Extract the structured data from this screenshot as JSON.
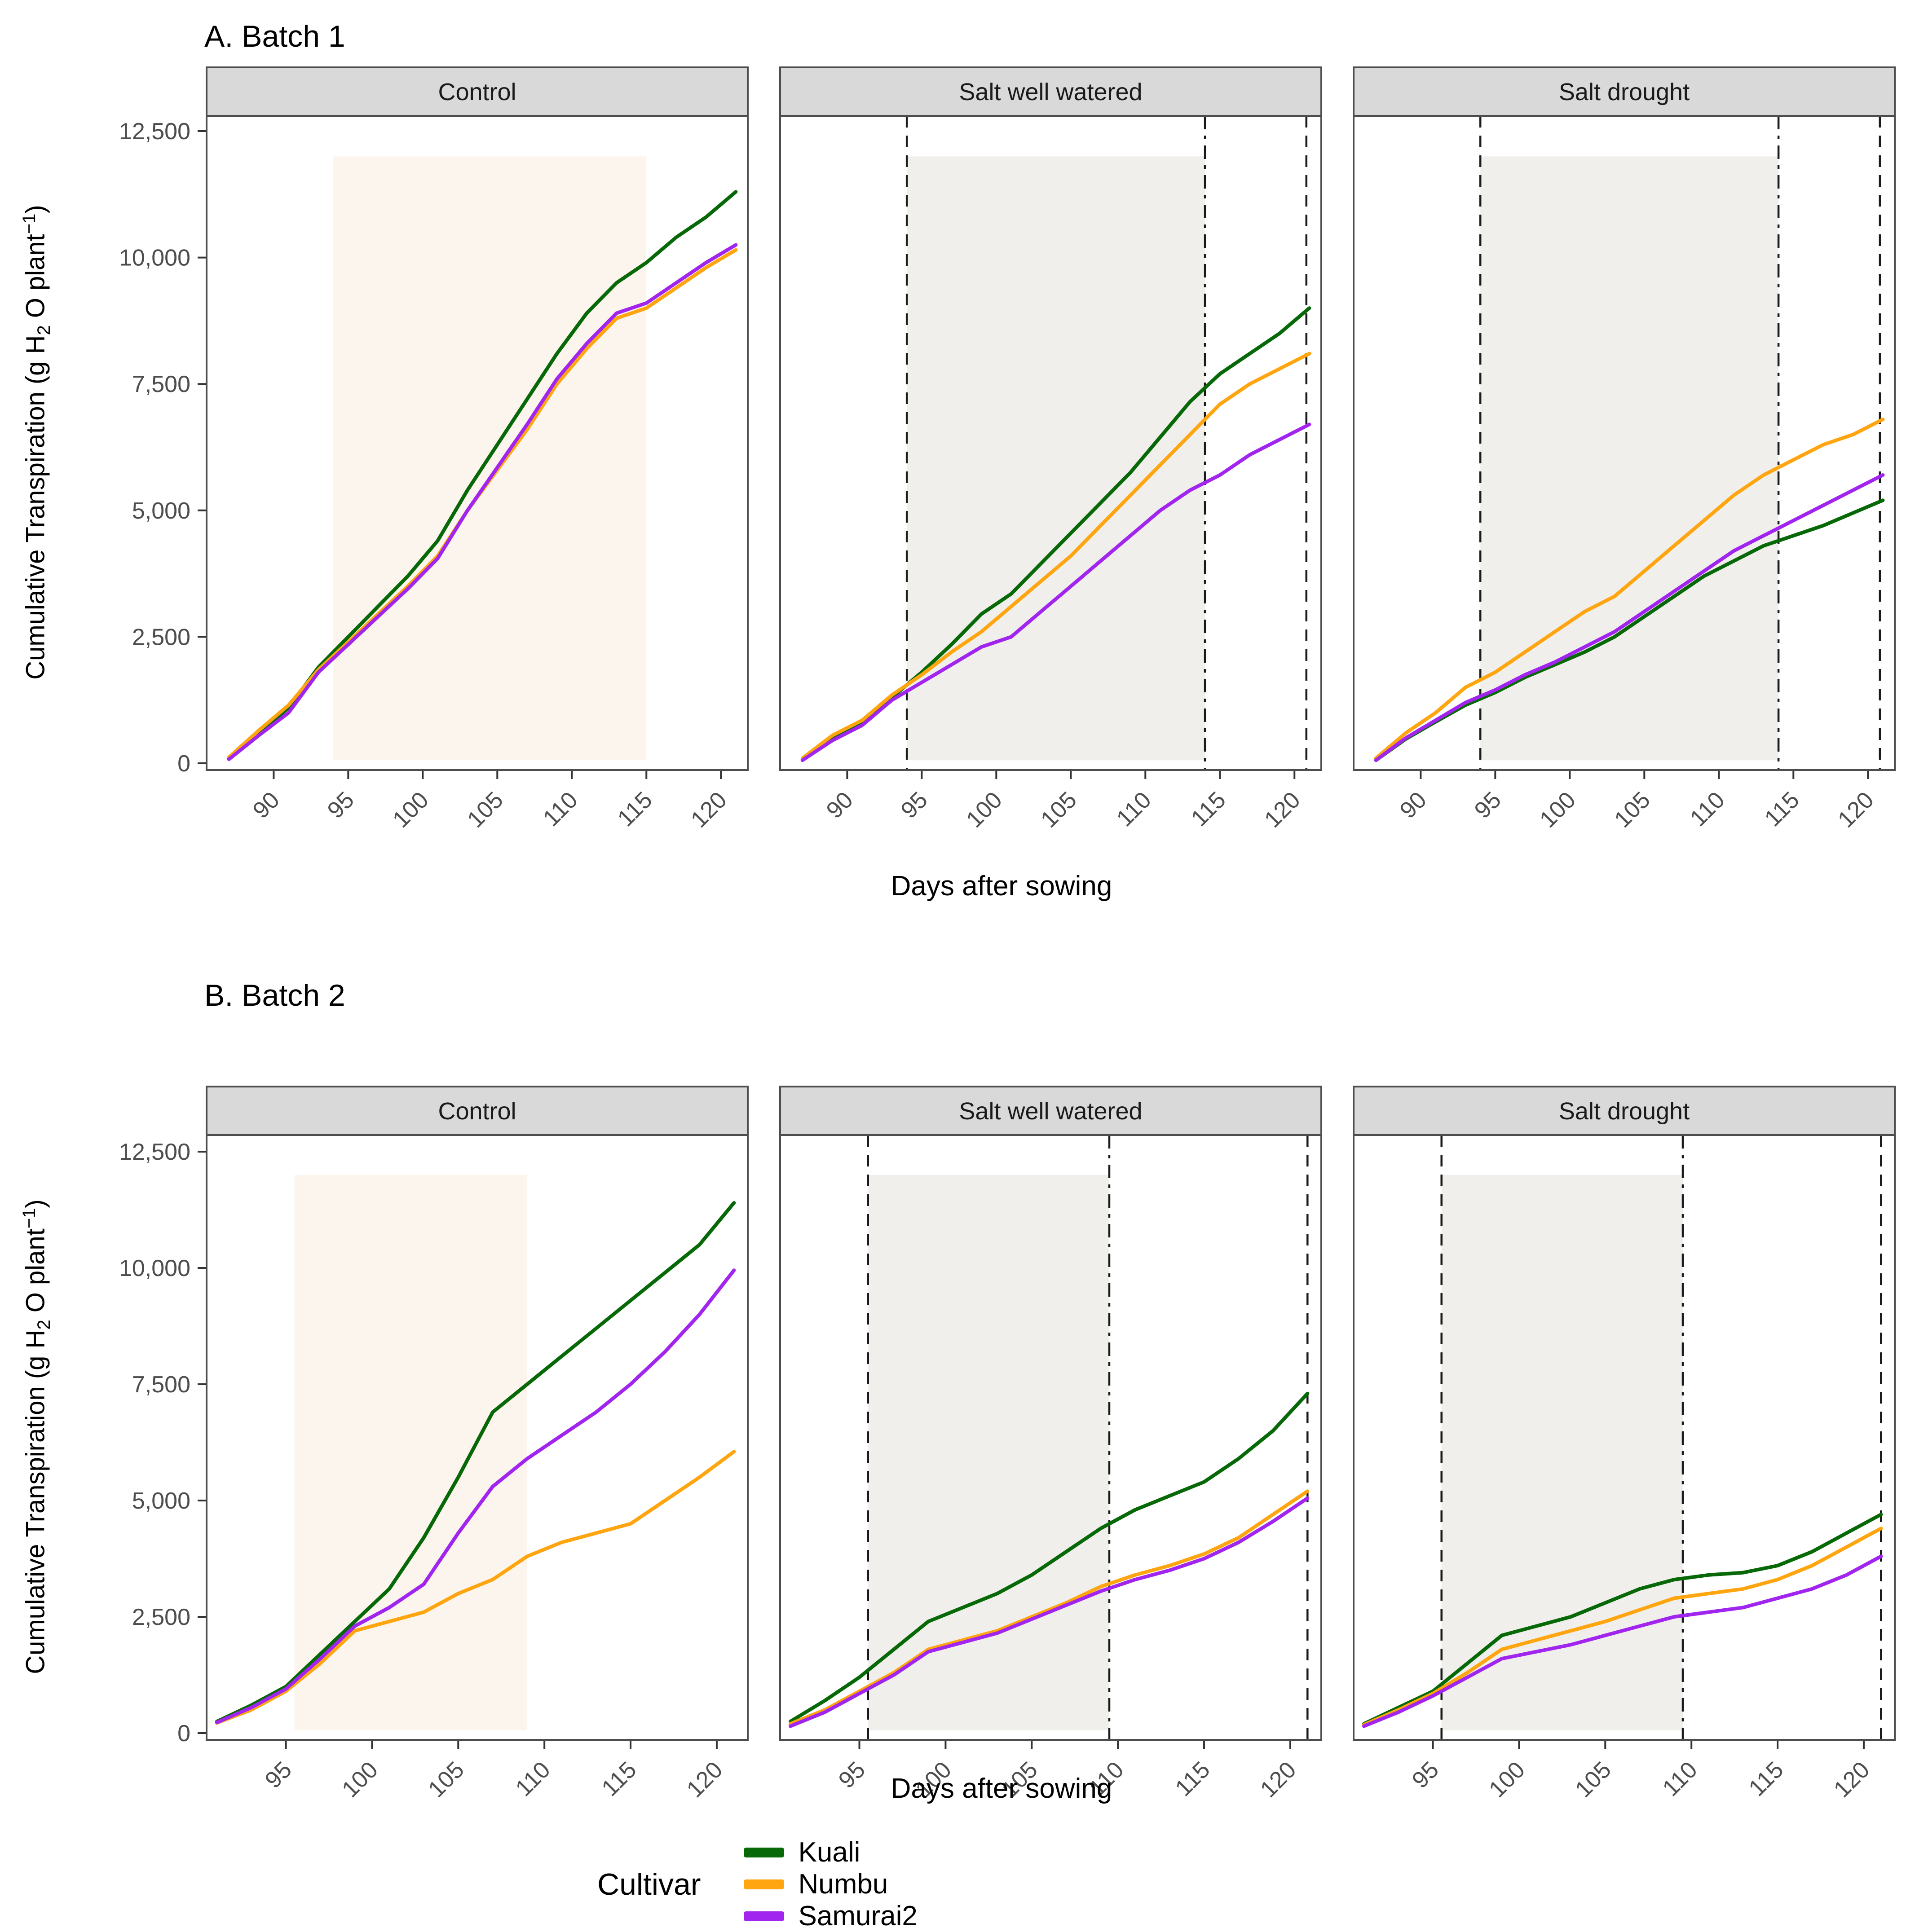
{
  "figure": {
    "batchA_title": "A. Batch 1",
    "batchB_title": "B. Batch 2",
    "x_axis_label": "Days after sowing",
    "y_axis_label_parts": {
      "p1": "Cumulative Transpiration (g H",
      "sub": "2",
      "p2": " O plant",
      "sup": "−1",
      "p3": ")"
    },
    "legend": {
      "title": "Cultivar",
      "items": [
        {
          "label": "Kuali",
          "color": "#066806"
        },
        {
          "label": "Numbu",
          "color": "#FFA50F"
        },
        {
          "label": "Samurai2",
          "color": "#A125EE"
        }
      ]
    },
    "colors": {
      "strip_bg": "#D9D9D9",
      "panel_border": "#4D4D4D",
      "tick_color": "#333333",
      "tick_label_color": "#4D4D4D",
      "vline_color": "#1A1A1A",
      "shade_control": "#FCF5ED",
      "shade_salt": "#F0EFEB"
    }
  },
  "chart_data": [
    {
      "type": "line",
      "batch_label": "A. Batch 1",
      "xlabel": "Days after sowing",
      "ylabel": "Cumulative Transpiration (g H2O plant-1)",
      "x_domain": [
        85.5,
        121.8
      ],
      "x_ticks": [
        90,
        95,
        100,
        105,
        110,
        115,
        120
      ],
      "y_domain": [
        0,
        12500
      ],
      "y_ticks": [
        0,
        2500,
        5000,
        7500,
        10000,
        12500
      ],
      "y_tick_labels": [
        "0",
        "2,500",
        "5,000",
        "7,500",
        "10,000",
        "12,500"
      ],
      "grid": false,
      "legend_position": "bottom",
      "days": [
        87,
        89,
        91,
        93,
        95,
        97,
        99,
        101,
        103,
        105,
        107,
        109,
        111,
        113,
        115,
        117,
        119,
        121
      ],
      "panels": [
        {
          "title": "Control",
          "shade": {
            "from": 94,
            "to": 115,
            "color_key": "shade_control",
            "v_from": 60,
            "v_to": 12000
          },
          "vlines": [],
          "series": [
            {
              "cultivar": "Kuali",
              "values": [
                100,
                600,
                1100,
                1900,
                2500,
                3100,
                3700,
                4400,
                5400,
                6300,
                7200,
                8100,
                8900,
                9500,
                9900,
                10400,
                10800,
                11300
              ]
            },
            {
              "cultivar": "Numbu",
              "values": [
                120,
                650,
                1150,
                1850,
                2400,
                2950,
                3500,
                4100,
                5000,
                5800,
                6600,
                7500,
                8200,
                8800,
                9000,
                9400,
                9800,
                10150
              ]
            },
            {
              "cultivar": "Samurai2",
              "values": [
                80,
                550,
                1000,
                1800,
                2350,
                2900,
                3450,
                4050,
                5000,
                5850,
                6700,
                7600,
                8300,
                8900,
                9100,
                9500,
                9900,
                10250
              ]
            }
          ]
        },
        {
          "title": "Salt well watered",
          "shade": {
            "from": 94,
            "to": 114,
            "color_key": "shade_salt",
            "v_from": 60,
            "v_to": 12000
          },
          "vlines": [
            {
              "day": 94,
              "style": "dashed"
            },
            {
              "day": 114,
              "style": "dashdot"
            },
            {
              "day": 120.8,
              "style": "dashed"
            }
          ],
          "series": [
            {
              "cultivar": "Kuali",
              "values": [
                80,
                500,
                800,
                1300,
                1800,
                2350,
                2950,
                3350,
                3950,
                4550,
                5150,
                5750,
                6450,
                7150,
                7700,
                8100,
                8500,
                9000
              ]
            },
            {
              "cultivar": "Numbu",
              "values": [
                100,
                550,
                850,
                1350,
                1750,
                2200,
                2600,
                3100,
                3600,
                4100,
                4700,
                5300,
                5900,
                6500,
                7100,
                7500,
                7800,
                8100
              ]
            },
            {
              "cultivar": "Samurai2",
              "values": [
                60,
                450,
                750,
                1250,
                1600,
                1950,
                2300,
                2500,
                3000,
                3500,
                4000,
                4500,
                5000,
                5400,
                5700,
                6100,
                6400,
                6700
              ]
            }
          ]
        },
        {
          "title": "Salt drought",
          "shade": {
            "from": 94,
            "to": 114,
            "color_key": "shade_salt",
            "v_from": 60,
            "v_to": 12000
          },
          "vlines": [
            {
              "day": 94,
              "style": "dashed"
            },
            {
              "day": 114,
              "style": "dashdot"
            },
            {
              "day": 120.8,
              "style": "dashed"
            }
          ],
          "series": [
            {
              "cultivar": "Kuali",
              "values": [
                60,
                480,
                820,
                1150,
                1400,
                1700,
                1950,
                2200,
                2500,
                2900,
                3300,
                3700,
                4000,
                4300,
                4500,
                4700,
                4950,
                5200
              ]
            },
            {
              "cultivar": "Numbu",
              "values": [
                100,
                600,
                1000,
                1500,
                1800,
                2200,
                2600,
                3000,
                3300,
                3800,
                4300,
                4800,
                5300,
                5700,
                6000,
                6300,
                6500,
                6800
              ]
            },
            {
              "cultivar": "Samurai2",
              "values": [
                60,
                500,
                850,
                1200,
                1450,
                1750,
                2000,
                2300,
                2600,
                3000,
                3400,
                3800,
                4200,
                4500,
                4800,
                5100,
                5400,
                5700
              ]
            }
          ]
        }
      ]
    },
    {
      "type": "line",
      "batch_label": "B. Batch 2",
      "xlabel": "Days after sowing",
      "ylabel": "Cumulative Transpiration (g H2O plant-1)",
      "x_domain": [
        90.4,
        121.8
      ],
      "x_ticks": [
        95,
        100,
        105,
        110,
        115,
        120
      ],
      "y_domain": [
        0,
        12500
      ],
      "y_ticks": [
        0,
        2500,
        5000,
        7500,
        10000,
        12500
      ],
      "y_tick_labels": [
        "0",
        "2,500",
        "5,000",
        "7,500",
        "10,000",
        "12,500"
      ],
      "grid": false,
      "legend_position": "bottom",
      "days": [
        91,
        93,
        95,
        97,
        99,
        101,
        103,
        105,
        107,
        109,
        111,
        113,
        115,
        117,
        119,
        121
      ],
      "panels": [
        {
          "title": "Control",
          "shade": {
            "from": 95.5,
            "to": 109,
            "color_key": "shade_control",
            "v_from": 60,
            "v_to": 12000
          },
          "vlines": [],
          "series": [
            {
              "cultivar": "Kuali",
              "values": [
                250,
                600,
                1000,
                1700,
                2400,
                3100,
                4200,
                5500,
                6900,
                7500,
                8100,
                8700,
                9300,
                9900,
                10500,
                11400
              ]
            },
            {
              "cultivar": "Numbu",
              "values": [
                220,
                500,
                900,
                1500,
                2200,
                2400,
                2600,
                3000,
                3300,
                3800,
                4100,
                4300,
                4500,
                5000,
                5500,
                6050
              ]
            },
            {
              "cultivar": "Samurai2",
              "values": [
                230,
                550,
                950,
                1600,
                2300,
                2700,
                3200,
                4300,
                5300,
                5900,
                6400,
                6900,
                7500,
                8200,
                9000,
                9950
              ]
            }
          ]
        },
        {
          "title": "Salt well watered",
          "shade": {
            "from": 95.5,
            "to": 109.5,
            "color_key": "shade_salt",
            "v_from": 60,
            "v_to": 12000
          },
          "vlines": [
            {
              "day": 95.5,
              "style": "dashed"
            },
            {
              "day": 109.5,
              "style": "dashdot"
            },
            {
              "day": 121,
              "style": "dashed"
            }
          ],
          "series": [
            {
              "cultivar": "Kuali",
              "values": [
                250,
                700,
                1200,
                1800,
                2400,
                2700,
                3000,
                3400,
                3900,
                4400,
                4800,
                5100,
                5400,
                5900,
                6500,
                7300
              ]
            },
            {
              "cultivar": "Numbu",
              "values": [
                200,
                500,
                900,
                1300,
                1800,
                2000,
                2200,
                2500,
                2800,
                3150,
                3400,
                3600,
                3850,
                4200,
                4700,
                5200
              ]
            },
            {
              "cultivar": "Samurai2",
              "values": [
                150,
                450,
                850,
                1250,
                1750,
                1950,
                2150,
                2450,
                2750,
                3050,
                3300,
                3500,
                3750,
                4100,
                4550,
                5050
              ]
            }
          ]
        },
        {
          "title": "Salt drought",
          "shade": {
            "from": 95.5,
            "to": 109.5,
            "color_key": "shade_salt",
            "v_from": 60,
            "v_to": 12000
          },
          "vlines": [
            {
              "day": 95.5,
              "style": "dashed"
            },
            {
              "day": 109.5,
              "style": "dashdot"
            },
            {
              "day": 121,
              "style": "dashed"
            }
          ],
          "series": [
            {
              "cultivar": "Kuali",
              "values": [
                200,
                550,
                900,
                1500,
                2100,
                2300,
                2500,
                2800,
                3100,
                3300,
                3400,
                3450,
                3600,
                3900,
                4300,
                4700
              ]
            },
            {
              "cultivar": "Numbu",
              "values": [
                180,
                500,
                850,
                1300,
                1800,
                2000,
                2200,
                2400,
                2650,
                2900,
                3000,
                3100,
                3300,
                3600,
                4000,
                4400
              ]
            },
            {
              "cultivar": "Samurai2",
              "values": [
                150,
                450,
                800,
                1200,
                1600,
                1750,
                1900,
                2100,
                2300,
                2500,
                2600,
                2700,
                2900,
                3100,
                3400,
                3800
              ]
            }
          ]
        }
      ]
    }
  ]
}
